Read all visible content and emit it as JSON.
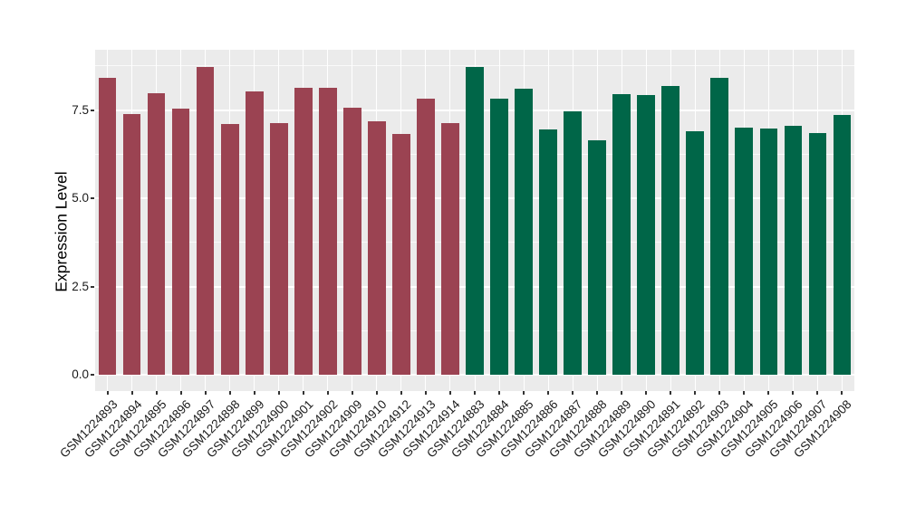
{
  "chart_data": {
    "type": "bar",
    "title": "",
    "xlabel": "",
    "ylabel": "Expression Level",
    "ylim": [
      0,
      9.2
    ],
    "grid": "on",
    "legend_position": "none",
    "panel_background": "#ebebeb",
    "gridline_color": "#ffffff",
    "tick_color": "#333333",
    "label_color": "#1a1a1a",
    "yticks": {
      "values": [
        0,
        2.5,
        5,
        7.5
      ],
      "labels": [
        "0.0",
        "2.5",
        "5.0",
        "7.5"
      ]
    },
    "minor_grid_values": [
      1.25,
      3.75,
      6.25,
      8.75
    ],
    "group_colors": {
      "groupA": "#9b4352",
      "groupB": "#006648"
    },
    "categories": [
      "GSM1224893",
      "GSM1224894",
      "GSM1224895",
      "GSM1224896",
      "GSM1224897",
      "GSM1224898",
      "GSM1224899",
      "GSM1224900",
      "GSM1224901",
      "GSM1224902",
      "GSM1224909",
      "GSM1224910",
      "GSM1224912",
      "GSM1224913",
      "GSM1224914",
      "GSM1224883",
      "GSM1224884",
      "GSM1224885",
      "GSM1224886",
      "GSM1224887",
      "GSM1224888",
      "GSM1224889",
      "GSM1224890",
      "GSM1224891",
      "GSM1224892",
      "GSM1224903",
      "GSM1224904",
      "GSM1224905",
      "GSM1224906",
      "GSM1224907",
      "GSM1224908"
    ],
    "values": [
      8.42,
      7.39,
      7.97,
      7.54,
      8.73,
      7.1,
      8.03,
      7.12,
      8.14,
      8.13,
      7.56,
      7.18,
      6.83,
      7.82,
      7.13,
      8.71,
      7.82,
      8.1,
      6.96,
      7.46,
      6.63,
      7.95,
      7.93,
      8.19,
      6.9,
      8.42,
      6.99,
      6.98,
      7.06,
      6.84,
      7.37
    ],
    "groups": [
      "groupA",
      "groupA",
      "groupA",
      "groupA",
      "groupA",
      "groupA",
      "groupA",
      "groupA",
      "groupA",
      "groupA",
      "groupA",
      "groupA",
      "groupA",
      "groupA",
      "groupA",
      "groupB",
      "groupB",
      "groupB",
      "groupB",
      "groupB",
      "groupB",
      "groupB",
      "groupB",
      "groupB",
      "groupB",
      "groupB",
      "groupB",
      "groupB",
      "groupB",
      "groupB",
      "groupB"
    ]
  }
}
